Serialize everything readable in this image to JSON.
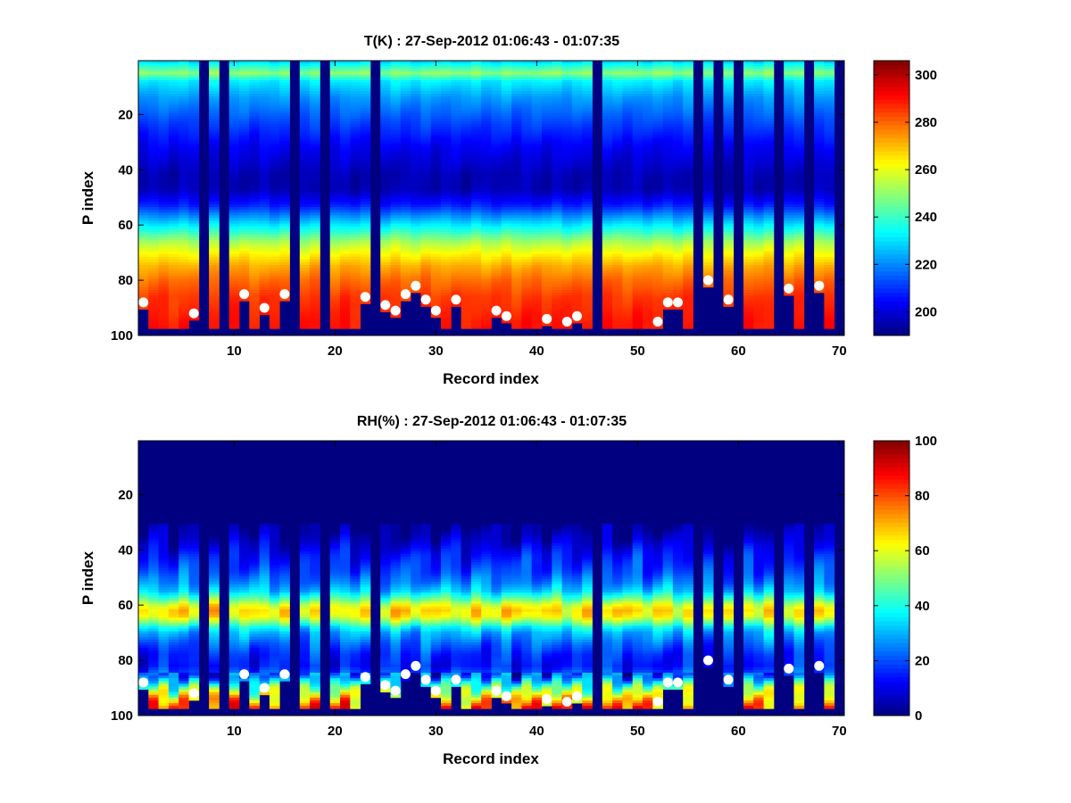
{
  "chart_data": [
    {
      "type": "heatmap",
      "title": "T(K) : 27-Sep-2012 01:06:43 - 01:07:35",
      "xlabel": "Record index",
      "ylabel": "P index",
      "xlim": [
        0.5,
        70.5
      ],
      "ylim": [
        100,
        0.5
      ],
      "xticks": [
        10,
        20,
        30,
        40,
        50,
        60,
        70
      ],
      "yticks": [
        20,
        40,
        60,
        80,
        100
      ],
      "colorbar": {
        "colormap": "jet",
        "range": [
          190,
          306
        ],
        "ticks": [
          200,
          220,
          240,
          260,
          280,
          300
        ]
      },
      "missing_columns": [
        7,
        9,
        16,
        19,
        24,
        46,
        56,
        58,
        60,
        64,
        67,
        70
      ],
      "profile": [
        [
          1,
          230
        ],
        [
          5,
          250
        ],
        [
          8,
          232
        ],
        [
          14,
          222
        ],
        [
          22,
          213
        ],
        [
          32,
          203
        ],
        [
          42,
          196
        ],
        [
          47,
          196
        ],
        [
          53,
          208
        ],
        [
          58,
          225
        ],
        [
          62,
          238
        ],
        [
          66,
          252
        ],
        [
          70,
          262
        ],
        [
          75,
          272
        ],
        [
          80,
          279
        ],
        [
          86,
          285
        ],
        [
          95,
          289
        ],
        [
          100,
          290
        ]
      ],
      "surface_markers": [
        {
          "x": 1,
          "y": 88
        },
        {
          "x": 6,
          "y": 92
        },
        {
          "x": 11,
          "y": 85
        },
        {
          "x": 13,
          "y": 90
        },
        {
          "x": 15,
          "y": 85
        },
        {
          "x": 23,
          "y": 86
        },
        {
          "x": 25,
          "y": 89
        },
        {
          "x": 26,
          "y": 91
        },
        {
          "x": 27,
          "y": 85
        },
        {
          "x": 28,
          "y": 82
        },
        {
          "x": 29,
          "y": 87
        },
        {
          "x": 30,
          "y": 91
        },
        {
          "x": 32,
          "y": 87
        },
        {
          "x": 36,
          "y": 91
        },
        {
          "x": 37,
          "y": 93
        },
        {
          "x": 41,
          "y": 94
        },
        {
          "x": 43,
          "y": 95
        },
        {
          "x": 44,
          "y": 93
        },
        {
          "x": 52,
          "y": 95
        },
        {
          "x": 53,
          "y": 88
        },
        {
          "x": 54,
          "y": 88
        },
        {
          "x": 57,
          "y": 80
        },
        {
          "x": 59,
          "y": 87
        },
        {
          "x": 65,
          "y": 83
        },
        {
          "x": 68,
          "y": 82
        }
      ]
    },
    {
      "type": "heatmap",
      "title": "RH(%) : 27-Sep-2012 01:06:43 - 01:07:35",
      "xlabel": "Record index",
      "ylabel": "P index",
      "xlim": [
        0.5,
        70.5
      ],
      "ylim": [
        100,
        0.5
      ],
      "xticks": [
        10,
        20,
        30,
        40,
        50,
        60,
        70
      ],
      "yticks": [
        20,
        40,
        60,
        80,
        100
      ],
      "colorbar": {
        "colormap": "jet",
        "range": [
          0,
          100
        ],
        "ticks": [
          0,
          20,
          40,
          60,
          80,
          100
        ]
      },
      "missing_columns": [
        7,
        9,
        16,
        19,
        24,
        46,
        56,
        58,
        60,
        64,
        67,
        70
      ],
      "profile": [
        [
          1,
          0
        ],
        [
          30,
          0
        ],
        [
          36,
          6
        ],
        [
          42,
          14
        ],
        [
          48,
          20
        ],
        [
          52,
          26
        ],
        [
          55,
          33
        ],
        [
          58,
          48
        ],
        [
          60,
          60
        ],
        [
          62,
          66
        ],
        [
          64,
          63
        ],
        [
          66,
          52
        ],
        [
          68,
          38
        ],
        [
          70,
          30
        ],
        [
          74,
          22
        ],
        [
          78,
          16
        ],
        [
          82,
          14
        ],
        [
          86,
          22
        ],
        [
          90,
          48
        ],
        [
          94,
          68
        ],
        [
          97,
          80
        ],
        [
          100,
          80
        ]
      ],
      "surface_markers": [
        {
          "x": 1,
          "y": 88
        },
        {
          "x": 6,
          "y": 92
        },
        {
          "x": 11,
          "y": 85
        },
        {
          "x": 13,
          "y": 90
        },
        {
          "x": 15,
          "y": 85
        },
        {
          "x": 23,
          "y": 86
        },
        {
          "x": 25,
          "y": 89
        },
        {
          "x": 26,
          "y": 91
        },
        {
          "x": 27,
          "y": 85
        },
        {
          "x": 28,
          "y": 82
        },
        {
          "x": 29,
          "y": 87
        },
        {
          "x": 30,
          "y": 91
        },
        {
          "x": 32,
          "y": 87
        },
        {
          "x": 36,
          "y": 91
        },
        {
          "x": 37,
          "y": 93
        },
        {
          "x": 41,
          "y": 94
        },
        {
          "x": 43,
          "y": 95
        },
        {
          "x": 44,
          "y": 93
        },
        {
          "x": 52,
          "y": 95
        },
        {
          "x": 53,
          "y": 88
        },
        {
          "x": 54,
          "y": 88
        },
        {
          "x": 57,
          "y": 80
        },
        {
          "x": 59,
          "y": 87
        },
        {
          "x": 65,
          "y": 83
        },
        {
          "x": 68,
          "y": 82
        }
      ]
    }
  ]
}
